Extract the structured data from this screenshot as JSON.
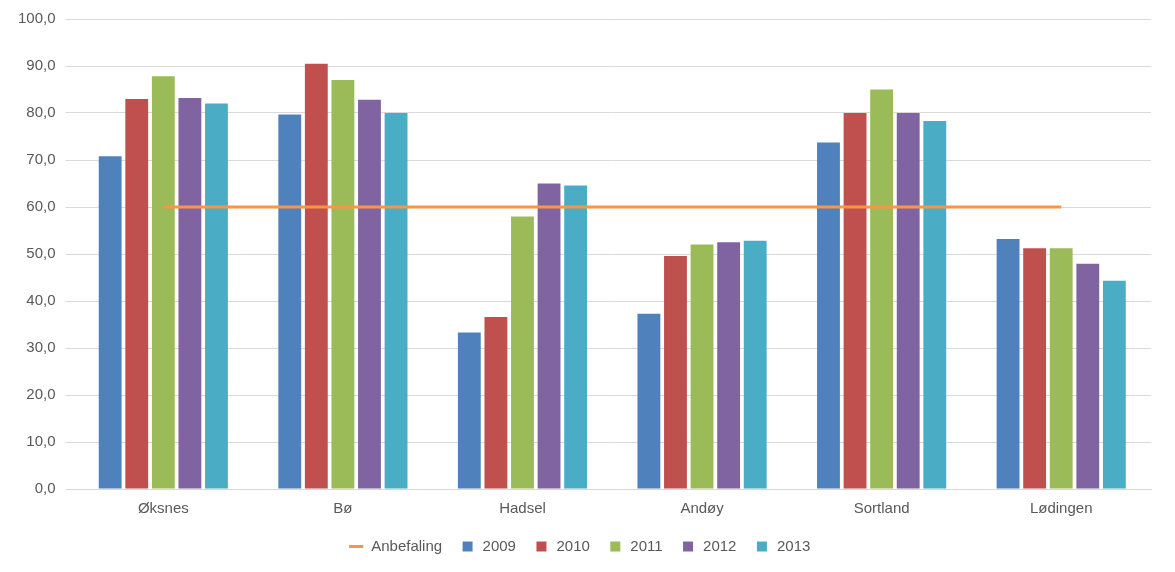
{
  "chart_data": {
    "type": "bar",
    "categories": [
      "Øksnes",
      "Bø",
      "Hadsel",
      "Andøy",
      "Sortland",
      "Lødingen"
    ],
    "series": [
      {
        "name": "2009",
        "color": "#4f81bd",
        "values": [
          70.8,
          79.7,
          33.3,
          37.3,
          73.7,
          53.2
        ]
      },
      {
        "name": "2010",
        "color": "#c0504d",
        "values": [
          83.0,
          90.5,
          36.6,
          49.6,
          80.0,
          51.2
        ]
      },
      {
        "name": "2011",
        "color": "#9bbb59",
        "values": [
          87.8,
          87.0,
          58.0,
          52.0,
          85.0,
          51.2
        ]
      },
      {
        "name": "2012",
        "color": "#8064a2",
        "values": [
          83.2,
          82.8,
          65.0,
          52.5,
          80.0,
          47.9
        ]
      },
      {
        "name": "2013",
        "color": "#4bacc6",
        "values": [
          82.0,
          80.0,
          64.6,
          52.8,
          78.3,
          44.3
        ]
      },
      {
        "name": "Anbefaling",
        "color": "#f79646",
        "type": "line",
        "marker": "none",
        "values": [
          60,
          60,
          60,
          60,
          60,
          60
        ]
      }
    ],
    "ylim": [
      0,
      100
    ],
    "yticks": [
      {
        "value": 0,
        "label": "0,0"
      },
      {
        "value": 10,
        "label": "10,0"
      },
      {
        "value": 20,
        "label": "20,0"
      },
      {
        "value": 30,
        "label": "30,0"
      },
      {
        "value": 40,
        "label": "40,0"
      },
      {
        "value": 50,
        "label": "50,0"
      },
      {
        "value": 60,
        "label": "60,0"
      },
      {
        "value": 70,
        "label": "70,0"
      },
      {
        "value": 80,
        "label": "80,0"
      },
      {
        "value": 90,
        "label": "90,0"
      },
      {
        "value": 100,
        "label": "100,0"
      }
    ],
    "grid": true,
    "legend": "bottom"
  }
}
